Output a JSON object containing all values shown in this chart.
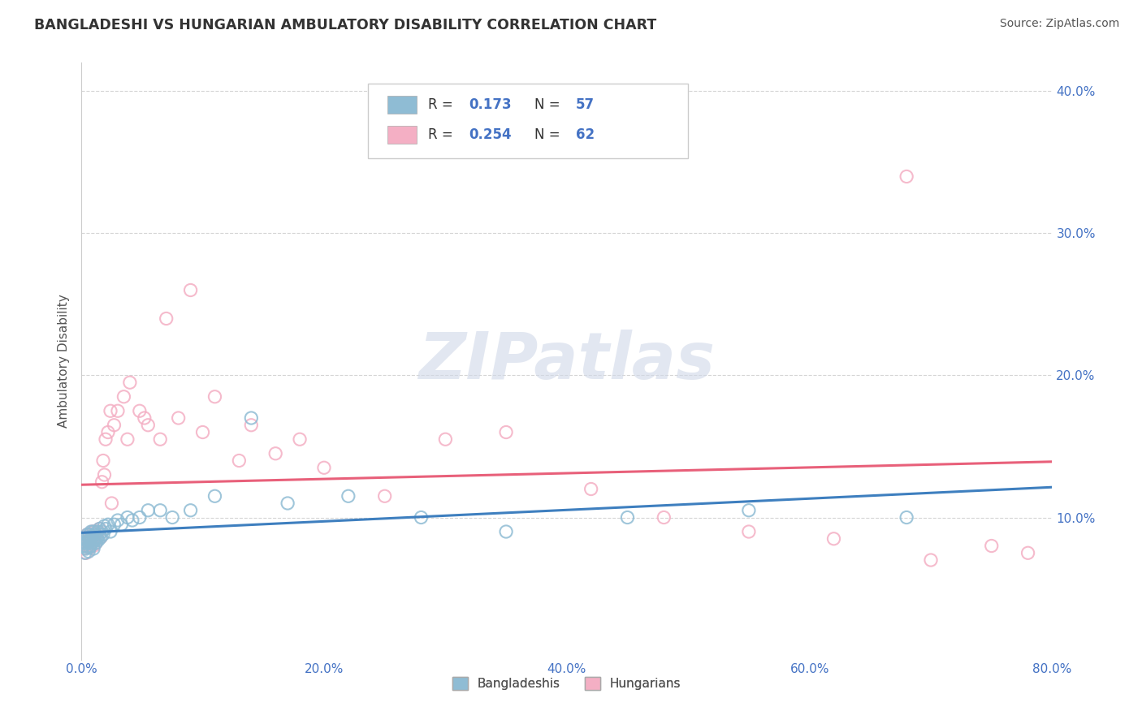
{
  "title": "BANGLADESHI VS HUNGARIAN AMBULATORY DISABILITY CORRELATION CHART",
  "source": "Source: ZipAtlas.com",
  "ylabel": "Ambulatory Disability",
  "xlim": [
    0.0,
    0.8
  ],
  "ylim": [
    0.0,
    0.42
  ],
  "xtick_labels": [
    "0.0%",
    "20.0%",
    "40.0%",
    "60.0%",
    "80.0%"
  ],
  "xtick_vals": [
    0.0,
    0.2,
    0.4,
    0.6,
    0.8
  ],
  "ytick_labels": [
    "10.0%",
    "20.0%",
    "30.0%",
    "40.0%"
  ],
  "ytick_vals": [
    0.1,
    0.2,
    0.3,
    0.4
  ],
  "blue_color": "#8fbcd4",
  "pink_color": "#f4afc4",
  "trend_blue": "#3e7fbf",
  "trend_pink": "#e8607a",
  "watermark_color": "#d0d8e8",
  "title_color": "#333333",
  "axis_label_color": "#555555",
  "tick_color": "#4472c4",
  "grid_color": "#d0d0d0",
  "bangladeshi_x": [
    0.002,
    0.003,
    0.003,
    0.004,
    0.004,
    0.005,
    0.005,
    0.005,
    0.006,
    0.006,
    0.006,
    0.007,
    0.007,
    0.007,
    0.008,
    0.008,
    0.008,
    0.009,
    0.009,
    0.01,
    0.01,
    0.01,
    0.011,
    0.011,
    0.012,
    0.012,
    0.013,
    0.013,
    0.014,
    0.015,
    0.015,
    0.016,
    0.017,
    0.018,
    0.019,
    0.02,
    0.022,
    0.024,
    0.027,
    0.03,
    0.033,
    0.038,
    0.042,
    0.048,
    0.055,
    0.065,
    0.075,
    0.09,
    0.11,
    0.14,
    0.17,
    0.22,
    0.28,
    0.35,
    0.45,
    0.55,
    0.68
  ],
  "bangladeshi_y": [
    0.08,
    0.075,
    0.082,
    0.078,
    0.085,
    0.079,
    0.083,
    0.088,
    0.076,
    0.082,
    0.086,
    0.079,
    0.084,
    0.088,
    0.08,
    0.085,
    0.09,
    0.082,
    0.087,
    0.078,
    0.083,
    0.09,
    0.084,
    0.088,
    0.082,
    0.086,
    0.085,
    0.09,
    0.084,
    0.088,
    0.092,
    0.086,
    0.09,
    0.088,
    0.094,
    0.092,
    0.095,
    0.09,
    0.095,
    0.098,
    0.095,
    0.1,
    0.098,
    0.1,
    0.105,
    0.105,
    0.1,
    0.105,
    0.115,
    0.17,
    0.11,
    0.115,
    0.1,
    0.09,
    0.1,
    0.105,
    0.1
  ],
  "hungarian_x": [
    0.002,
    0.003,
    0.003,
    0.004,
    0.004,
    0.005,
    0.005,
    0.006,
    0.006,
    0.007,
    0.007,
    0.008,
    0.008,
    0.009,
    0.009,
    0.01,
    0.01,
    0.011,
    0.011,
    0.012,
    0.012,
    0.013,
    0.014,
    0.015,
    0.016,
    0.017,
    0.018,
    0.019,
    0.02,
    0.022,
    0.024,
    0.027,
    0.03,
    0.035,
    0.04,
    0.048,
    0.055,
    0.065,
    0.08,
    0.1,
    0.13,
    0.16,
    0.2,
    0.25,
    0.3,
    0.35,
    0.42,
    0.48,
    0.55,
    0.62,
    0.7,
    0.75,
    0.78,
    0.025,
    0.038,
    0.052,
    0.07,
    0.09,
    0.11,
    0.14,
    0.18,
    0.68
  ],
  "hungarian_y": [
    0.078,
    0.082,
    0.086,
    0.075,
    0.08,
    0.083,
    0.088,
    0.08,
    0.085,
    0.079,
    0.084,
    0.082,
    0.087,
    0.085,
    0.09,
    0.08,
    0.086,
    0.084,
    0.09,
    0.082,
    0.088,
    0.085,
    0.09,
    0.092,
    0.086,
    0.125,
    0.14,
    0.13,
    0.155,
    0.16,
    0.175,
    0.165,
    0.175,
    0.185,
    0.195,
    0.175,
    0.165,
    0.155,
    0.17,
    0.16,
    0.14,
    0.145,
    0.135,
    0.115,
    0.155,
    0.16,
    0.12,
    0.1,
    0.09,
    0.085,
    0.07,
    0.08,
    0.075,
    0.11,
    0.155,
    0.17,
    0.24,
    0.26,
    0.185,
    0.165,
    0.155,
    0.34
  ]
}
